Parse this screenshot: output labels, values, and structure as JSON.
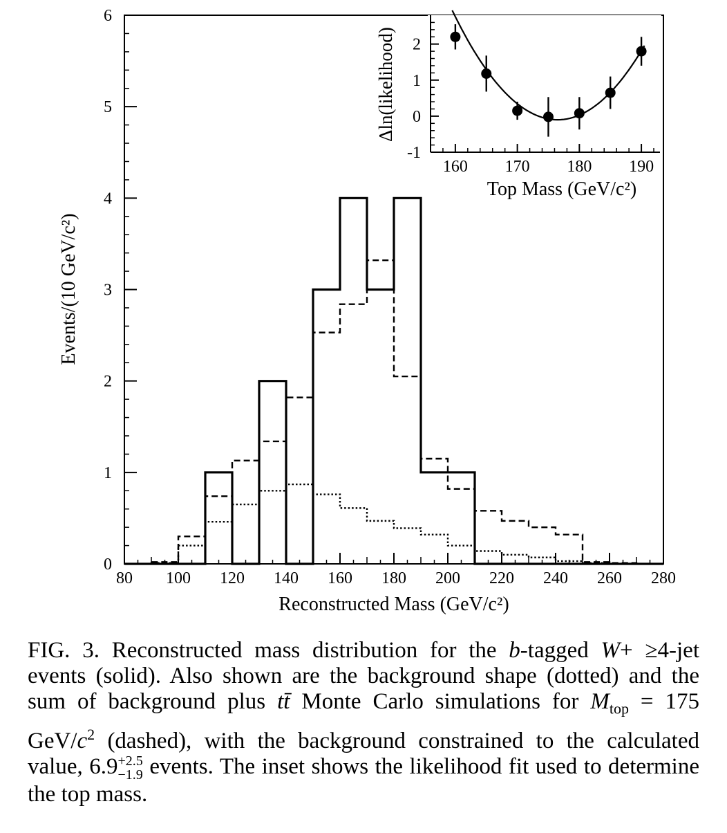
{
  "chart_data": [
    {
      "type": "histogram",
      "xlabel": "Reconstructed Mass (GeV/c²)",
      "ylabel": "Events/(10 GeV/c²)",
      "xlim": [
        80,
        280
      ],
      "ylim": [
        0,
        6
      ],
      "xticks": [
        "80",
        "100",
        "120",
        "140",
        "160",
        "180",
        "200",
        "220",
        "240",
        "260",
        "280"
      ],
      "yticks": [
        "0",
        "1",
        "2",
        "3",
        "4",
        "5",
        "6"
      ],
      "bin_edges": [
        80,
        90,
        100,
        110,
        120,
        130,
        140,
        150,
        160,
        170,
        180,
        190,
        200,
        210,
        220,
        230,
        240,
        250,
        260,
        270,
        280
      ],
      "series": [
        {
          "style": "solid",
          "values": [
            0,
            0,
            0,
            1,
            0,
            2,
            0,
            3,
            4,
            3,
            4,
            1,
            1,
            0,
            0,
            0,
            0,
            0,
            0,
            0
          ]
        },
        {
          "style": "dashed",
          "values": [
            0,
            0.02,
            0.3,
            0.74,
            1.13,
            1.34,
            1.82,
            2.53,
            2.84,
            3.32,
            2.05,
            1.15,
            0.82,
            0.58,
            0.47,
            0.4,
            0.32,
            0.02,
            0.01,
            0
          ]
        },
        {
          "style": "dotted",
          "values": [
            0,
            0.01,
            0.2,
            0.46,
            0.65,
            0.8,
            0.87,
            0.76,
            0.61,
            0.47,
            0.39,
            0.32,
            0.2,
            0.14,
            0.1,
            0.07,
            0.03,
            0.01,
            0,
            0
          ]
        }
      ]
    },
    {
      "type": "scatter",
      "xlabel": "Top Mass (GeV/c²)",
      "ylabel": "Δln(likelihood)",
      "xlim": [
        156,
        193
      ],
      "ylim": [
        -1,
        2.8
      ],
      "xticks": [
        "160",
        "170",
        "180",
        "190"
      ],
      "yticks": [
        "-1",
        "0",
        "1",
        "2"
      ],
      "points": [
        {
          "x": 160,
          "y": 2.2,
          "err": 0.35
        },
        {
          "x": 165,
          "y": 1.18,
          "err": 0.5
        },
        {
          "x": 170,
          "y": 0.15,
          "err": 0.25
        },
        {
          "x": 175,
          "y": -0.02,
          "err": 0.55
        },
        {
          "x": 180,
          "y": 0.08,
          "err": 0.45
        },
        {
          "x": 185,
          "y": 0.65,
          "err": 0.45
        },
        {
          "x": 190,
          "y": 1.8,
          "err": 0.4
        }
      ],
      "fit": {
        "form": "parabola",
        "min_x": 176.5,
        "min_y": -0.1,
        "curvature": 0.0105
      }
    }
  ],
  "caption": {
    "lead": "FIG. 3.",
    "t1": " Reconstructed mass distribution for the ",
    "b": "b",
    "t2": "-tagged ",
    "W": "W",
    "t3": "+ ≥4-jet events (solid). Also shown are the background shape (dotted) and the sum of background plus ",
    "tt": "tt̄",
    "t4": " Monte Carlo simulations for ",
    "M": "M",
    "msub": "top",
    "t5": " = 175 GeV/",
    "c": "c",
    "csup": "2",
    "t6": " (dashed), with the background constrained to the calculated value, 6.9",
    "err_up": "+2.5",
    "err_dn": "−1.9",
    "t7": " events. The inset shows the likelihood fit used to determine the top mass."
  }
}
